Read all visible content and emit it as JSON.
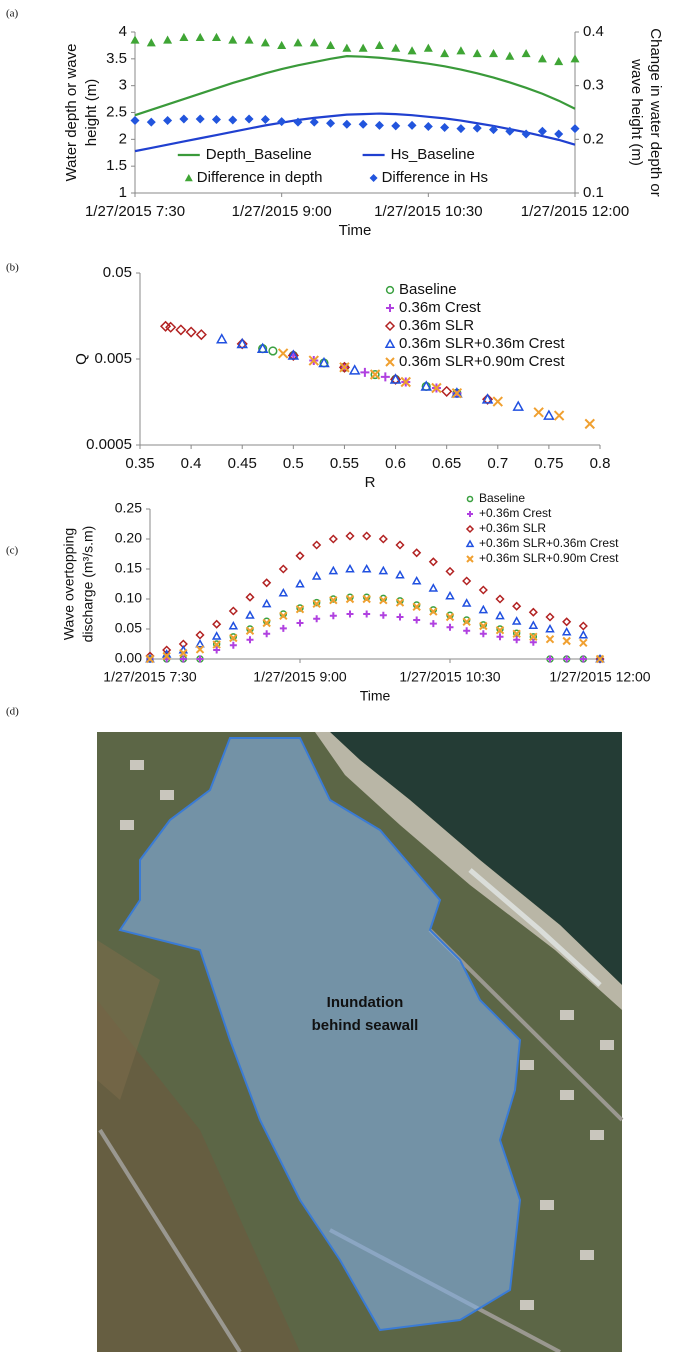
{
  "panel_labels": [
    "(a)",
    "(b)",
    "(c)",
    "(d)"
  ],
  "map": {
    "annotation": [
      "Inundation",
      "behind seawall"
    ]
  },
  "chart_data": [
    {
      "type": "line",
      "ylabel": [
        "Water depth or wave",
        "height (m)"
      ],
      "y2label": [
        "Change in water depth or",
        "wave height (m)"
      ],
      "xlabel": "Time",
      "x": [
        "1/27/2015 7:30",
        "1/27/2015 7:40",
        "1/27/2015 7:50",
        "1/27/2015 8:00",
        "1/27/2015 8:10",
        "1/27/2015 8:20",
        "1/27/2015 8:30",
        "1/27/2015 8:40",
        "1/27/2015 8:50",
        "1/27/2015 9:00",
        "1/27/2015 9:10",
        "1/27/2015 9:20",
        "1/27/2015 9:30",
        "1/27/2015 9:40",
        "1/27/2015 9:50",
        "1/27/2015 10:00",
        "1/27/2015 10:10",
        "1/27/2015 10:20",
        "1/27/2015 10:30",
        "1/27/2015 10:40",
        "1/27/2015 10:50",
        "1/27/2015 11:00",
        "1/27/2015 11:10",
        "1/27/2015 11:20",
        "1/27/2015 11:30",
        "1/27/2015 11:40",
        "1/27/2015 11:50",
        "1/27/2015 12:00"
      ],
      "xlim": [
        "1/27/2015 7:30",
        "1/27/2015 12:00"
      ],
      "xticks": [
        "1/27/2015 7:30",
        "1/27/2015 9:00",
        "1/27/2015 10:30",
        "1/27/2015 12:00"
      ],
      "ylim": [
        1,
        4
      ],
      "yticks": [
        1,
        1.5,
        2,
        2.5,
        3,
        3.5,
        4
      ],
      "y2lim": [
        0.1,
        0.4
      ],
      "y2ticks": [
        0.1,
        0.2,
        0.3,
        0.4
      ],
      "legend": "lower center",
      "series": [
        {
          "name": "Depth_Baseline",
          "color": "#3a9a3a",
          "mode": "line",
          "values": [
            2.45,
            2.55,
            2.65,
            2.75,
            2.85,
            2.95,
            3.05,
            3.14,
            3.23,
            3.31,
            3.38,
            3.44,
            3.5,
            3.55,
            3.54,
            3.52,
            3.49,
            3.45,
            3.41,
            3.36,
            3.3,
            3.23,
            3.15,
            3.06,
            2.96,
            2.85,
            2.72,
            2.57
          ]
        },
        {
          "name": "Hs_Baseline",
          "color": "#2040d0",
          "mode": "line",
          "values": [
            1.78,
            1.84,
            1.9,
            1.96,
            2.02,
            2.08,
            2.14,
            2.2,
            2.26,
            2.31,
            2.36,
            2.4,
            2.43,
            2.46,
            2.47,
            2.48,
            2.47,
            2.45,
            2.42,
            2.39,
            2.35,
            2.3,
            2.25,
            2.19,
            2.13,
            2.06,
            1.99,
            1.9
          ]
        },
        {
          "name": "Difference in depth",
          "color": "#3fa535",
          "mode": "markers",
          "marker": "triangle",
          "axis": "y2",
          "values": [
            0.385,
            0.38,
            0.385,
            0.39,
            0.39,
            0.39,
            0.385,
            0.385,
            0.38,
            0.375,
            0.38,
            0.38,
            0.375,
            0.37,
            0.37,
            0.375,
            0.37,
            0.365,
            0.37,
            0.36,
            0.365,
            0.36,
            0.36,
            0.355,
            0.36,
            0.35,
            0.345,
            0.35
          ]
        },
        {
          "name": "Difference in Hs",
          "color": "#2255dd",
          "mode": "markers",
          "marker": "diamond",
          "axis": "y2",
          "values": [
            0.235,
            0.232,
            0.235,
            0.238,
            0.238,
            0.237,
            0.236,
            0.238,
            0.237,
            0.233,
            0.232,
            0.232,
            0.23,
            0.228,
            0.228,
            0.226,
            0.225,
            0.226,
            0.224,
            0.222,
            0.22,
            0.221,
            0.218,
            0.215,
            0.21,
            0.215,
            0.21,
            0.22
          ]
        }
      ]
    },
    {
      "type": "scatter",
      "xlabel": "R",
      "ylabel": [
        "Q"
      ],
      "xlim": [
        0.35,
        0.8
      ],
      "xticks": [
        0.35,
        0.4,
        0.45,
        0.5,
        0.55,
        0.6,
        0.65,
        0.7,
        0.75,
        0.8
      ],
      "ylim": [
        0.0005,
        0.05
      ],
      "yticks": [
        0.0005,
        0.005,
        0.05
      ],
      "ylog": true,
      "legend": "upper right",
      "series": [
        {
          "name": "Baseline",
          "color": "#3aa040",
          "mode": "markers",
          "marker": "circle-open",
          "x": [
            0.47,
            0.48,
            0.5,
            0.53,
            0.55,
            0.58,
            0.6,
            0.63,
            0.66
          ],
          "values": [
            0.0066,
            0.0062,
            0.0055,
            0.0045,
            0.004,
            0.0033,
            0.0029,
            0.0024,
            0.002
          ]
        },
        {
          "name": "0.36m Crest",
          "color": "#b040e0",
          "mode": "markers",
          "marker": "plus",
          "x": [
            0.5,
            0.52,
            0.55,
            0.57,
            0.59,
            0.61,
            0.64,
            0.66
          ],
          "values": [
            0.0055,
            0.0048,
            0.004,
            0.0035,
            0.0031,
            0.0027,
            0.0023,
            0.002
          ]
        },
        {
          "name": "0.36m SLR",
          "color": "#b22222",
          "mode": "markers",
          "marker": "diamond-open",
          "x": [
            0.375,
            0.38,
            0.39,
            0.4,
            0.41,
            0.45,
            0.5,
            0.55,
            0.6,
            0.65,
            0.69
          ],
          "values": [
            0.012,
            0.0117,
            0.0109,
            0.0103,
            0.0096,
            0.0075,
            0.0055,
            0.004,
            0.0029,
            0.0021,
            0.0017
          ]
        },
        {
          "name": "0.36m SLR+0.36m Crest",
          "color": "#2050e0",
          "mode": "markers",
          "marker": "triangle-open",
          "x": [
            0.43,
            0.45,
            0.47,
            0.5,
            0.53,
            0.56,
            0.6,
            0.63,
            0.66,
            0.69,
            0.72,
            0.75
          ],
          "values": [
            0.0085,
            0.0075,
            0.0066,
            0.0055,
            0.0045,
            0.0037,
            0.0029,
            0.0024,
            0.002,
            0.0017,
            0.0014,
            0.0011
          ]
        },
        {
          "name": "0.36m SLR+0.90m Crest",
          "color": "#f0a030",
          "mode": "markers",
          "marker": "x",
          "x": [
            0.49,
            0.52,
            0.55,
            0.58,
            0.61,
            0.64,
            0.66,
            0.7,
            0.74,
            0.76,
            0.79
          ],
          "values": [
            0.0058,
            0.0048,
            0.004,
            0.0033,
            0.0027,
            0.0023,
            0.002,
            0.0016,
            0.0012,
            0.0011,
            0.00088
          ]
        }
      ]
    },
    {
      "type": "scatter",
      "ylabel": [
        "Wave overtopping",
        "discharge (m³/s.m)"
      ],
      "xlabel": "Time",
      "x": [
        "1/27/2015 7:30",
        "1/27/2015 7:40",
        "1/27/2015 7:50",
        "1/27/2015 8:00",
        "1/27/2015 8:10",
        "1/27/2015 8:20",
        "1/27/2015 8:30",
        "1/27/2015 8:40",
        "1/27/2015 8:50",
        "1/27/2015 9:00",
        "1/27/2015 9:10",
        "1/27/2015 9:20",
        "1/27/2015 9:30",
        "1/27/2015 9:40",
        "1/27/2015 9:50",
        "1/27/2015 10:00",
        "1/27/2015 10:10",
        "1/27/2015 10:20",
        "1/27/2015 10:30",
        "1/27/2015 10:40",
        "1/27/2015 10:50",
        "1/27/2015 11:00",
        "1/27/2015 11:10",
        "1/27/2015 11:20",
        "1/27/2015 11:30",
        "1/27/2015 11:40",
        "1/27/2015 11:50",
        "1/27/2015 12:00"
      ],
      "xlim": [
        "1/27/2015 7:30",
        "1/27/2015 12:00"
      ],
      "xticks": [
        "1/27/2015 7:30",
        "1/27/2015 9:00",
        "1/27/2015 10:30",
        "1/27/2015 12:00"
      ],
      "ylim": [
        0,
        0.25
      ],
      "yticks": [
        {
          "value": 0,
          "label": "0.00"
        },
        {
          "value": 0.05,
          "label": "0.05"
        },
        {
          "value": 0.1,
          "label": "0.10"
        },
        {
          "value": 0.15,
          "label": "0.15"
        },
        {
          "value": 0.2,
          "label": "0.20"
        },
        {
          "value": 0.25,
          "label": "0.25"
        }
      ],
      "legend": "upper right",
      "series": [
        {
          "name": "Baseline",
          "color": "#3aa040",
          "mode": "markers",
          "marker": "circle-open",
          "values": [
            0,
            0,
            0,
            0,
            0.025,
            0.037,
            0.05,
            0.063,
            0.075,
            0.085,
            0.094,
            0.1,
            0.103,
            0.103,
            0.101,
            0.097,
            0.09,
            0.082,
            0.073,
            0.065,
            0.057,
            0.05,
            0.043,
            0.037,
            0,
            0,
            0,
            0
          ]
        },
        {
          "name": "+0.36m Crest",
          "color": "#b040e0",
          "mode": "markers",
          "marker": "plus",
          "values": [
            0,
            0,
            0,
            0,
            0.015,
            0.023,
            0.032,
            0.042,
            0.051,
            0.06,
            0.067,
            0.072,
            0.075,
            0.075,
            0.073,
            0.07,
            0.065,
            0.059,
            0.053,
            0.047,
            0.042,
            0.037,
            0.032,
            0.028,
            0,
            0,
            0,
            0
          ]
        },
        {
          "name": "+0.36m SLR",
          "color": "#b22222",
          "mode": "markers",
          "marker": "diamond-open",
          "values": [
            0.005,
            0.015,
            0.025,
            0.04,
            0.058,
            0.08,
            0.103,
            0.127,
            0.15,
            0.172,
            0.19,
            0.2,
            0.205,
            0.205,
            0.2,
            0.19,
            0.177,
            0.162,
            0.146,
            0.13,
            0.115,
            0.1,
            0.088,
            0.078,
            0.07,
            0.062,
            0.055,
            0
          ]
        },
        {
          "name": "+0.36m SLR+0.36m Crest",
          "color": "#2050e0",
          "mode": "markers",
          "marker": "triangle-open",
          "values": [
            0,
            0.008,
            0.015,
            0.025,
            0.038,
            0.055,
            0.073,
            0.092,
            0.11,
            0.125,
            0.138,
            0.147,
            0.15,
            0.15,
            0.147,
            0.14,
            0.13,
            0.118,
            0.105,
            0.093,
            0.082,
            0.072,
            0.063,
            0.056,
            0.05,
            0.045,
            0.04,
            0
          ]
        },
        {
          "name": "+0.36m SLR+0.90m Crest",
          "color": "#f0a030",
          "mode": "markers",
          "marker": "x",
          "values": [
            0,
            0.005,
            0.01,
            0.016,
            0.024,
            0.035,
            0.047,
            0.06,
            0.072,
            0.083,
            0.092,
            0.098,
            0.1,
            0.1,
            0.098,
            0.094,
            0.087,
            0.079,
            0.07,
            0.062,
            0.055,
            0.048,
            0.042,
            0.037,
            0.033,
            0.03,
            0.027,
            0
          ]
        }
      ]
    }
  ]
}
